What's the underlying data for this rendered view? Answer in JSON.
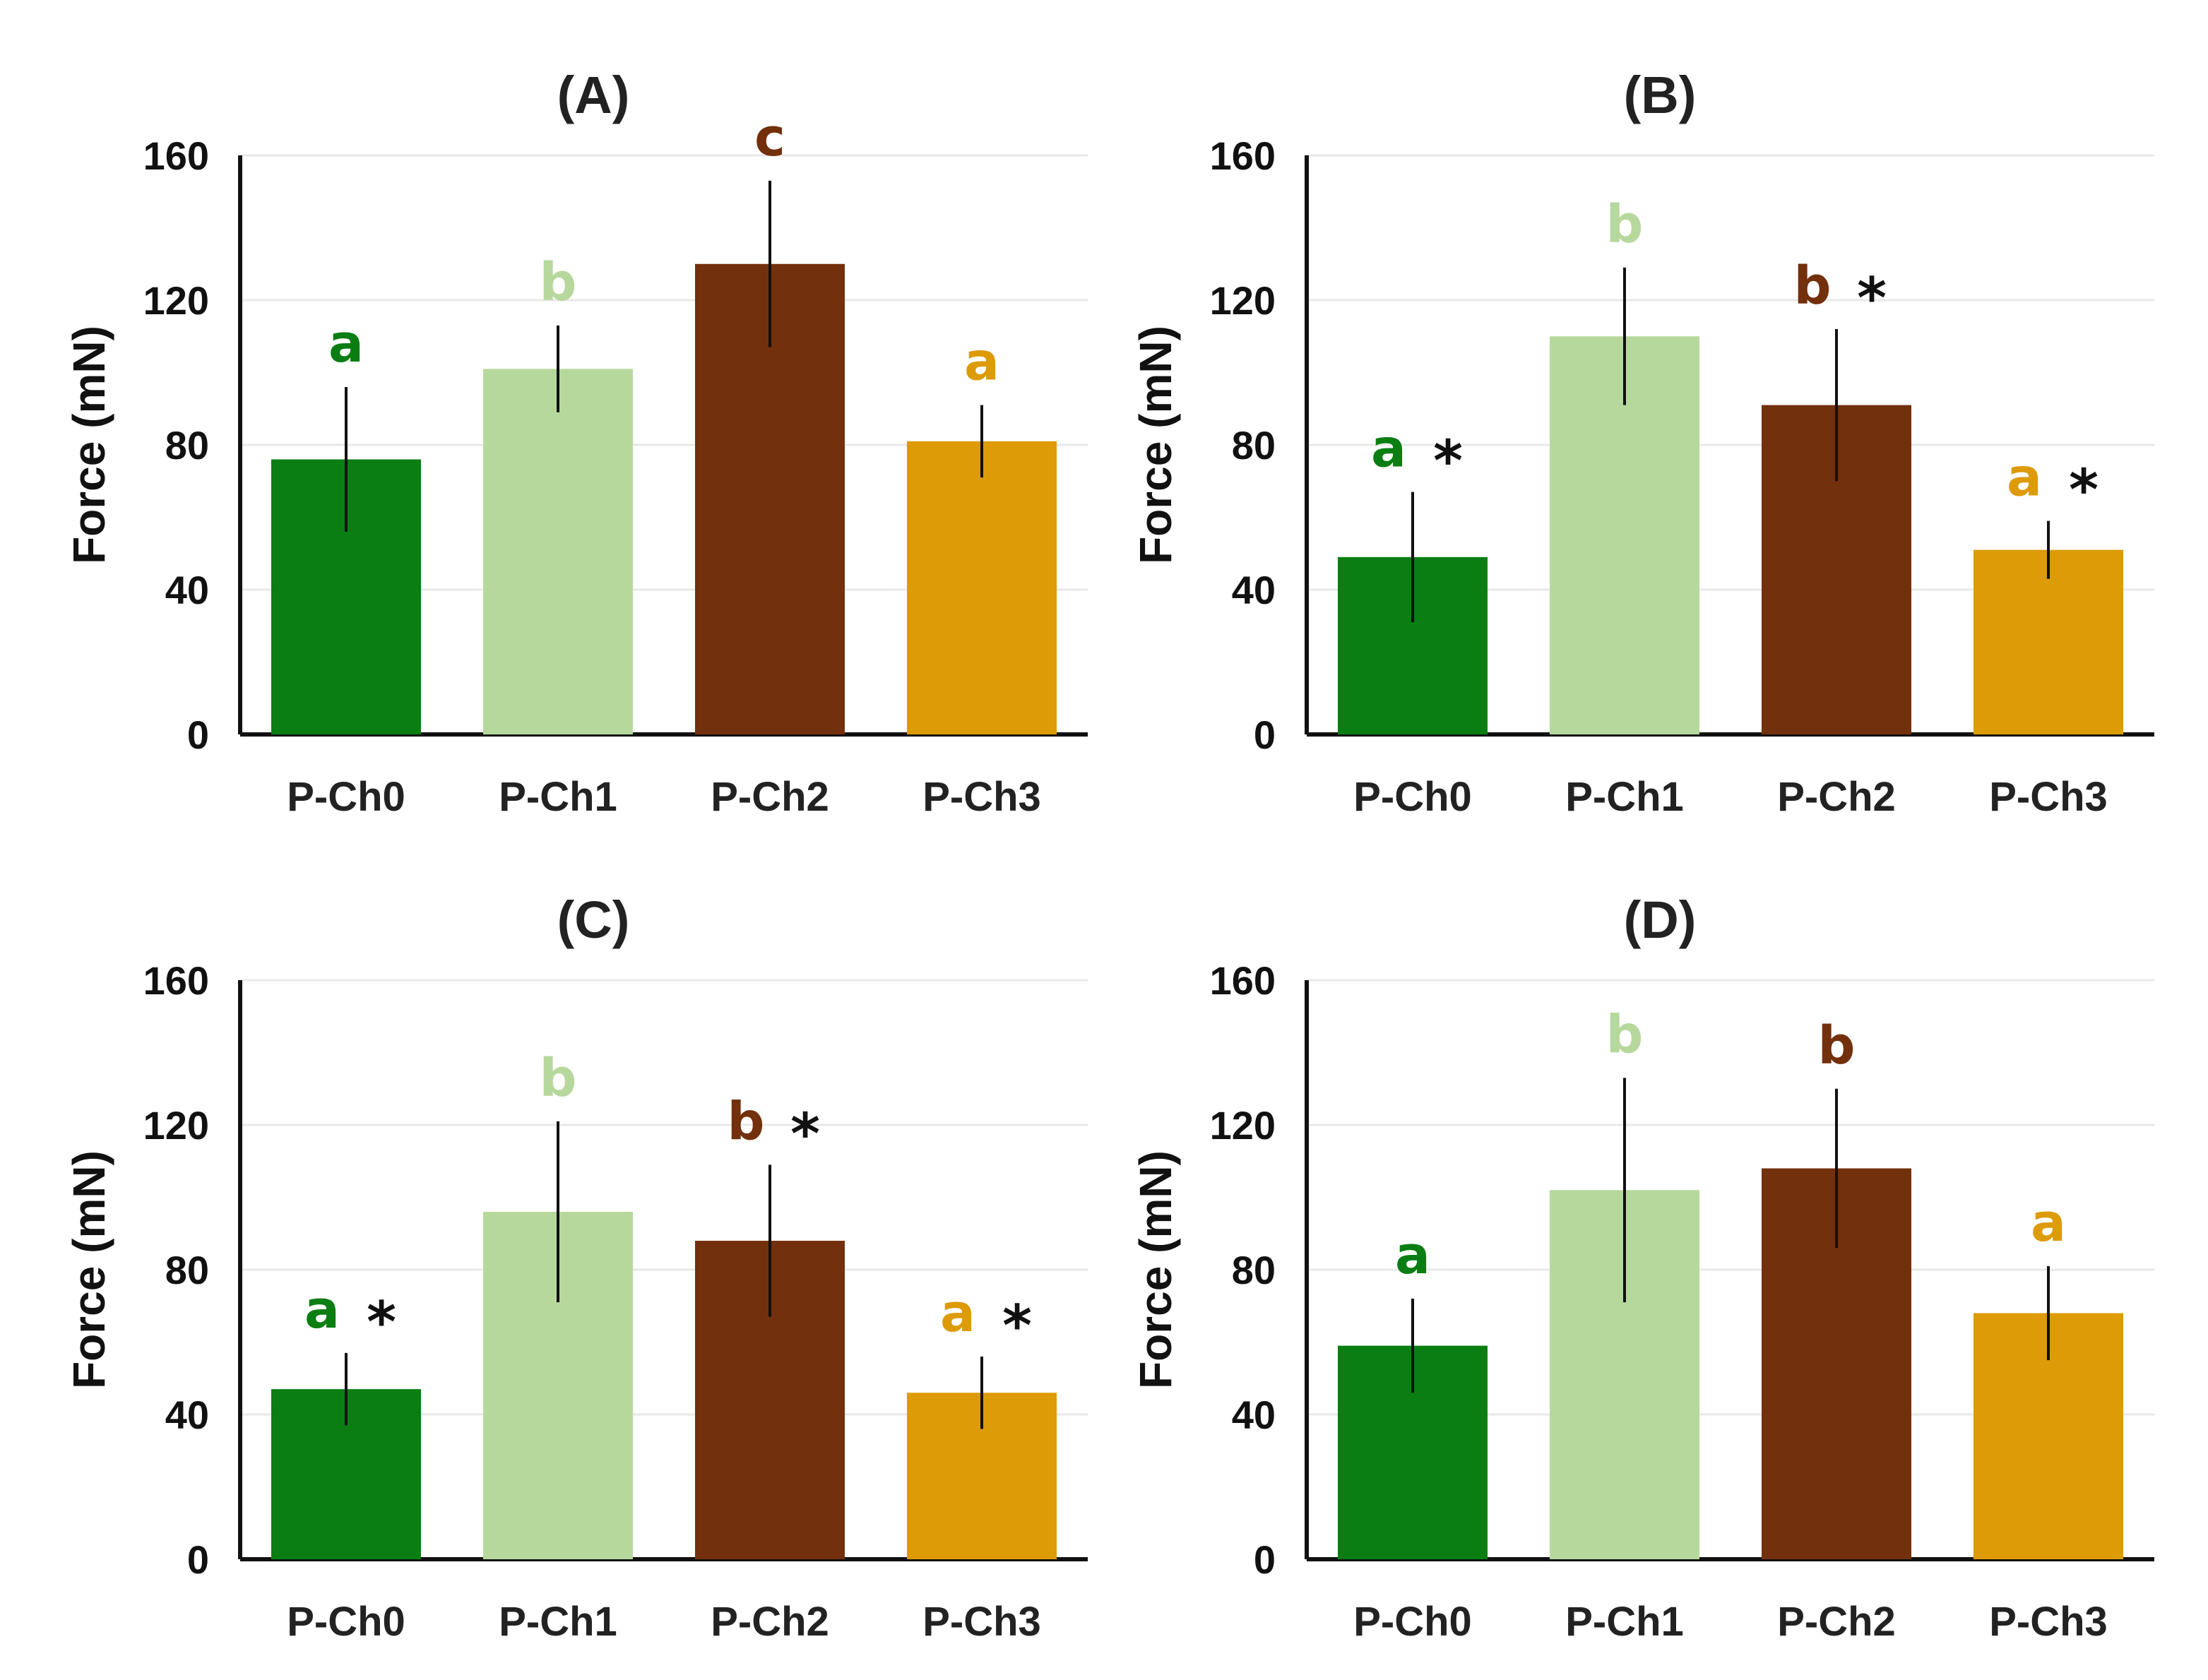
{
  "colors": {
    "P-Ch0": "#0a7e12",
    "P-Ch1": "#b7d89c",
    "P-Ch2": "#73300c",
    "P-Ch3": "#dc9b07",
    "axis": "#111111",
    "grid": "#e8e8e8",
    "error": "#111111"
  },
  "chart_data": [
    {
      "type": "bar",
      "title": "(A)",
      "ylabel": "Force (mN)",
      "xlabel": "",
      "ylim": [
        0,
        160
      ],
      "yticks": [
        "0",
        "40",
        "80",
        "120",
        "160"
      ],
      "categories": [
        "P-Ch0",
        "P-Ch1",
        "P-Ch2",
        "P-Ch3"
      ],
      "values": [
        76,
        101,
        130,
        81
      ],
      "errors": [
        20,
        12,
        23,
        10
      ],
      "letters": [
        "a",
        "b",
        "c",
        "a"
      ],
      "stars": [
        "",
        "",
        "",
        ""
      ]
    },
    {
      "type": "bar",
      "title": "(B)",
      "ylabel": "Force (mN)",
      "xlabel": "",
      "ylim": [
        0,
        160
      ],
      "yticks": [
        "0",
        "40",
        "80",
        "120",
        "160"
      ],
      "categories": [
        "P-Ch0",
        "P-Ch1",
        "P-Ch2",
        "P-Ch3"
      ],
      "values": [
        49,
        110,
        91,
        51
      ],
      "errors": [
        18,
        19,
        21,
        8
      ],
      "letters": [
        "a",
        "b",
        "b",
        "a"
      ],
      "stars": [
        "*",
        "",
        "*",
        "*"
      ]
    },
    {
      "type": "bar",
      "title": "(C)",
      "ylabel": "Force (mN)",
      "xlabel": "",
      "ylim": [
        0,
        160
      ],
      "yticks": [
        "0",
        "40",
        "80",
        "120",
        "160"
      ],
      "categories": [
        "P-Ch0",
        "P-Ch1",
        "P-Ch2",
        "P-Ch3"
      ],
      "values": [
        47,
        96,
        88,
        46
      ],
      "errors": [
        10,
        25,
        21,
        10
      ],
      "letters": [
        "a",
        "b",
        "b",
        "a"
      ],
      "stars": [
        "*",
        "",
        "*",
        "*"
      ]
    },
    {
      "type": "bar",
      "title": "(D)",
      "ylabel": "Force (mN)",
      "xlabel": "",
      "ylim": [
        0,
        160
      ],
      "yticks": [
        "0",
        "40",
        "80",
        "120",
        "160"
      ],
      "categories": [
        "P-Ch0",
        "P-Ch1",
        "P-Ch2",
        "P-Ch3"
      ],
      "values": [
        59,
        102,
        108,
        68
      ],
      "errors": [
        13,
        31,
        22,
        13
      ],
      "letters": [
        "a",
        "b",
        "b",
        "a"
      ],
      "stars": [
        "",
        "",
        "",
        ""
      ]
    }
  ]
}
